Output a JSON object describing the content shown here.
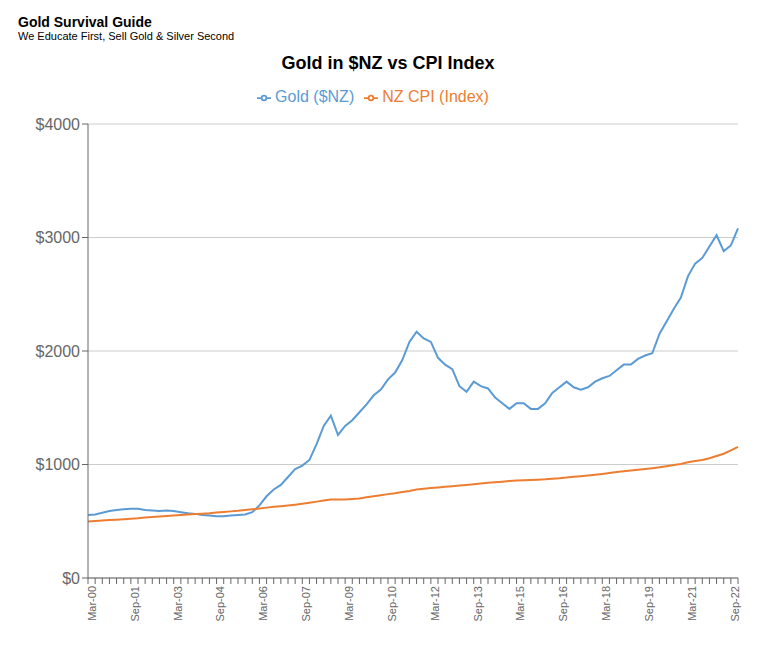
{
  "chart_data": {
    "type": "line",
    "title": "Gold in $NZ vs CPI Index",
    "annotations": [
      "Gold Survival Guide",
      "We Educate First, Sell Gold & Silver Second"
    ],
    "categories": [
      "Mar-00",
      null,
      null,
      null,
      null,
      null,
      "Sep-01",
      null,
      null,
      null,
      null,
      null,
      "Mar-03",
      null,
      null,
      null,
      null,
      null,
      "Sep-04",
      null,
      null,
      null,
      null,
      null,
      "Mar-06",
      null,
      null,
      null,
      null,
      null,
      "Sep-07",
      null,
      null,
      null,
      null,
      null,
      "Mar-09",
      null,
      null,
      null,
      null,
      null,
      "Sep-10",
      null,
      null,
      null,
      null,
      null,
      "Mar-12",
      null,
      null,
      null,
      null,
      null,
      "Sep-13",
      null,
      null,
      null,
      null,
      null,
      "Mar-15",
      null,
      null,
      null,
      null,
      null,
      "Sep-16",
      null,
      null,
      null,
      null,
      null,
      "Mar-18",
      null,
      null,
      null,
      null,
      null,
      "Sep-19",
      null,
      null,
      null,
      null,
      null,
      "Mar-21",
      null,
      null,
      null,
      null,
      null,
      "Sep-22",
      null
    ],
    "series": [
      {
        "name": "Gold ($NZ)",
        "color": "#5b9bd5",
        "values": [
          555,
          560,
          575,
          590,
          600,
          605,
          610,
          610,
          600,
          595,
          590,
          595,
          590,
          580,
          570,
          565,
          555,
          550,
          545,
          545,
          550,
          555,
          560,
          580,
          640,
          720,
          780,
          820,
          890,
          960,
          990,
          1040,
          1180,
          1340,
          1430,
          1260,
          1340,
          1390,
          1460,
          1530,
          1610,
          1660,
          1750,
          1810,
          1920,
          2080,
          2170,
          2110,
          2080,
          1940,
          1880,
          1840,
          1690,
          1640,
          1730,
          1690,
          1670,
          1590,
          1540,
          1490,
          1540,
          1540,
          1490,
          1490,
          1540,
          1630,
          1680,
          1730,
          1680,
          1660,
          1680,
          1730,
          1760,
          1780,
          1830,
          1880,
          1880,
          1930,
          1960,
          1980,
          2150,
          2260,
          2370,
          2470,
          2660,
          2770,
          2820,
          2920,
          3020,
          2880,
          2930,
          3080
        ]
      },
      {
        "name": "NZ CPI (Index)",
        "color": "#ed7d31",
        "values": [
          498,
          502,
          506,
          510,
          514,
          518,
          522,
          526,
          532,
          537,
          541,
          546,
          550,
          555,
          559,
          563,
          567,
          571,
          577,
          582,
          587,
          592,
          599,
          605,
          612,
          620,
          627,
          633,
          639,
          646,
          654,
          663,
          673,
          682,
          691,
          691,
          691,
          696,
          701,
          711,
          720,
          729,
          739,
          747,
          757,
          767,
          779,
          787,
          793,
          798,
          804,
          809,
          815,
          820,
          826,
          832,
          839,
          844,
          849,
          854,
          859,
          862,
          864,
          866,
          869,
          874,
          879,
          886,
          892,
          897,
          903,
          910,
          917,
          925,
          933,
          940,
          948,
          954,
          961,
          968,
          975,
          985,
          995,
          1005,
          1020,
          1030,
          1040,
          1055,
          1075,
          1095,
          1125,
          1155
        ]
      }
    ],
    "ylim": [
      0,
      4000
    ],
    "yticks": [
      {
        "value": 0,
        "label": "$0"
      },
      {
        "value": 1000,
        "label": "$1000"
      },
      {
        "value": 2000,
        "label": "$2000"
      },
      {
        "value": 3000,
        "label": "$3000"
      },
      {
        "value": 4000,
        "label": "$4000"
      }
    ],
    "grid": true,
    "legend": "top"
  }
}
